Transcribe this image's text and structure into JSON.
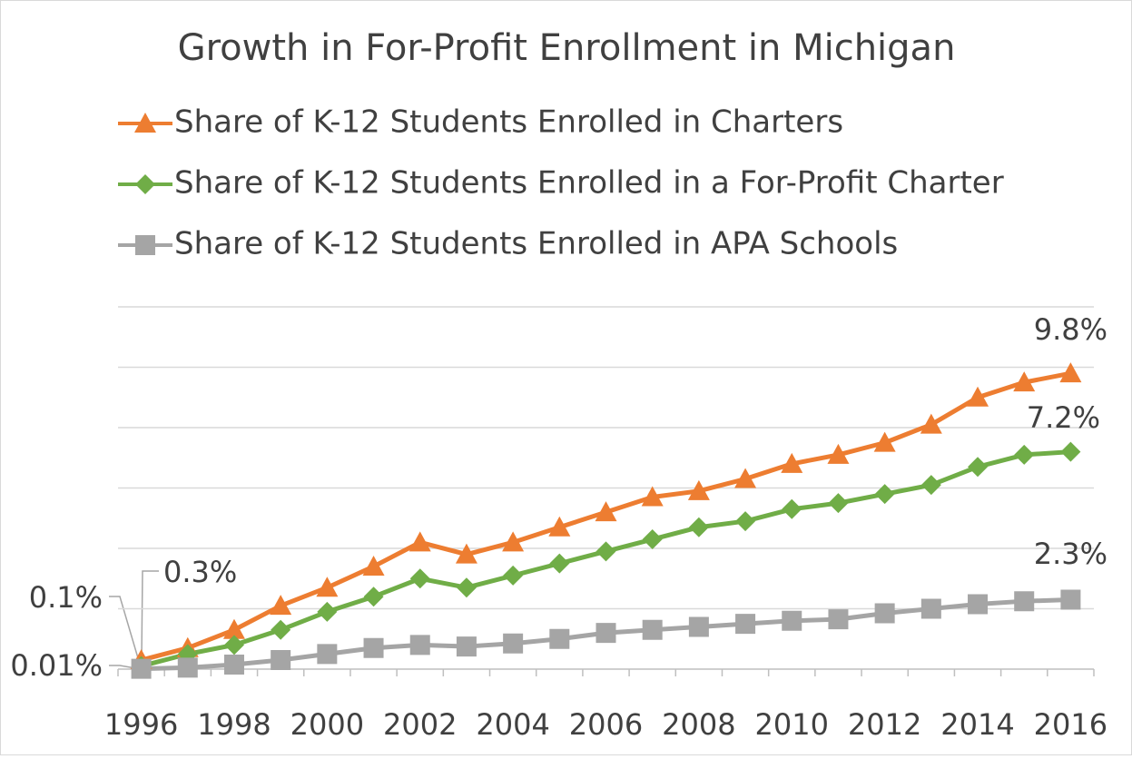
{
  "chart_data": {
    "type": "line",
    "title": "Growth in For-Profit Enrollment in Michigan",
    "categories": [
      "1996",
      null,
      "1998",
      null,
      "2000",
      null,
      "2002",
      null,
      "2004",
      null,
      "2006",
      null,
      "2008",
      null,
      "2010",
      null,
      "2012",
      null,
      "2014",
      null,
      "2016"
    ],
    "ylim": [
      0,
      12
    ],
    "yticks": [
      2,
      4,
      6,
      8,
      10,
      12
    ],
    "grid": true,
    "series": [
      {
        "name": "Share of K-12 Students Enrolled in Charters",
        "color": "#ed7d31",
        "marker": "triangle",
        "values": [
          0.3,
          0.7,
          1.3,
          2.1,
          2.7,
          3.4,
          4.2,
          3.8,
          4.2,
          4.7,
          5.2,
          5.7,
          5.9,
          6.3,
          6.8,
          7.1,
          7.5,
          8.1,
          9.0,
          9.5,
          9.8
        ],
        "value_labels": [
          "0.3%",
          null,
          null,
          null,
          null,
          null,
          null,
          null,
          null,
          null,
          null,
          null,
          null,
          null,
          null,
          null,
          null,
          null,
          null,
          null,
          "9.8%"
        ]
      },
      {
        "name": "Share of K-12 Students Enrolled in a For-Profit Charter",
        "color": "#70ad47",
        "marker": "diamond",
        "values": [
          0.1,
          0.5,
          0.8,
          1.3,
          1.9,
          2.4,
          3.0,
          2.7,
          3.1,
          3.5,
          3.9,
          4.3,
          4.7,
          4.9,
          5.3,
          5.5,
          5.8,
          6.1,
          6.7,
          7.1,
          7.2
        ],
        "value_labels": [
          "0.1%",
          null,
          null,
          null,
          null,
          null,
          null,
          null,
          null,
          null,
          null,
          null,
          null,
          null,
          null,
          null,
          null,
          null,
          null,
          null,
          "7.2%"
        ]
      },
      {
        "name": "Share of K-12 Students Enrolled in APA Schools",
        "color": "#a5a5a5",
        "marker": "square",
        "values": [
          0.01,
          0.05,
          0.15,
          0.3,
          0.5,
          0.7,
          0.8,
          0.75,
          0.85,
          1.0,
          1.2,
          1.3,
          1.4,
          1.5,
          1.6,
          1.65,
          1.85,
          2.0,
          2.15,
          2.25,
          2.3
        ],
        "value_labels": [
          "0.01%",
          null,
          null,
          null,
          null,
          null,
          null,
          null,
          null,
          null,
          null,
          null,
          null,
          null,
          null,
          null,
          null,
          null,
          null,
          null,
          "2.3%"
        ]
      }
    ]
  }
}
